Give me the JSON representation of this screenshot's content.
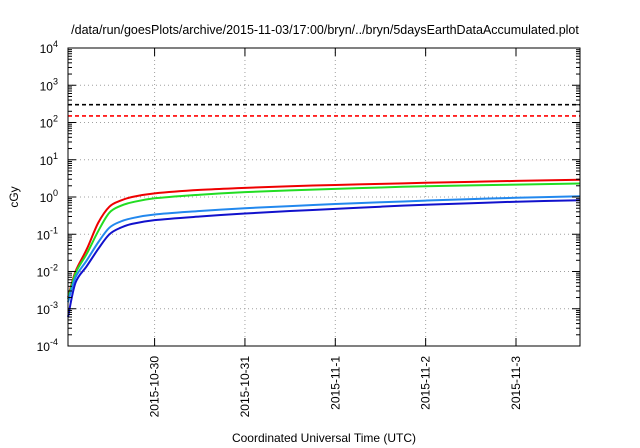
{
  "chart_data": {
    "type": "line",
    "title": "/data/run/goesPlots/archive/2015-11-03/17:00/bryn/../bryn/5daysEarthDataAccumulated.plot",
    "xlabel": "Coordinated Universal Time (UTC)",
    "ylabel": "cGy",
    "y_scale": "log",
    "ylim": [
      0.0001,
      10000
    ],
    "xlim": [
      "2015-10-29 01:00",
      "2015-11-03 17:00"
    ],
    "x_ticks": [
      "2015-10-30",
      "2015-10-31",
      "2015-11-1",
      "2015-11-2",
      "2015-11-3"
    ],
    "y_ticks": [
      {
        "base": "10",
        "exp": "-4",
        "value": 0.0001
      },
      {
        "base": "10",
        "exp": "-3",
        "value": 0.001
      },
      {
        "base": "10",
        "exp": "-2",
        "value": 0.01
      },
      {
        "base": "10",
        "exp": "-1",
        "value": 0.1
      },
      {
        "base": "10",
        "exp": "0",
        "value": 1
      },
      {
        "base": "10",
        "exp": "1",
        "value": 10
      },
      {
        "base": "10",
        "exp": "2",
        "value": 100
      },
      {
        "base": "10",
        "exp": "3",
        "value": 1000
      },
      {
        "base": "10",
        "exp": "4",
        "value": 10000
      }
    ],
    "grid": true,
    "thresholds": [
      {
        "value": 300,
        "color": "#000000",
        "style": "dashed"
      },
      {
        "value": 150,
        "color": "#ff0000",
        "style": "dashed"
      }
    ],
    "series": [
      {
        "color": "#ee0000",
        "x": [
          "2015-10-29 01:00",
          "2015-10-29 03:00",
          "2015-10-29 06:00",
          "2015-10-29 09:00",
          "2015-10-29 12:00",
          "2015-10-29 15:00",
          "2015-10-29 18:00",
          "2015-10-30 00:00",
          "2015-10-30 12:00",
          "2015-10-31 00:00",
          "2015-10-31 12:00",
          "2015-11-01 00:00",
          "2015-11-01 12:00",
          "2015-11-02 00:00",
          "2015-11-02 12:00",
          "2015-11-03 00:00",
          "2015-11-03 17:00"
        ],
        "values": [
          0.002,
          0.01,
          0.04,
          0.2,
          0.55,
          0.8,
          1.0,
          1.25,
          1.55,
          1.75,
          1.95,
          2.1,
          2.25,
          2.4,
          2.55,
          2.7,
          2.9
        ]
      },
      {
        "color": "#22dd22",
        "x": [
          "2015-10-29 01:00",
          "2015-10-29 03:00",
          "2015-10-29 06:00",
          "2015-10-29 09:00",
          "2015-10-29 12:00",
          "2015-10-29 15:00",
          "2015-10-29 18:00",
          "2015-10-30 00:00",
          "2015-10-30 12:00",
          "2015-10-31 00:00",
          "2015-10-31 12:00",
          "2015-11-01 00:00",
          "2015-11-01 12:00",
          "2015-11-02 00:00",
          "2015-11-02 12:00",
          "2015-11-03 00:00",
          "2015-11-03 17:00"
        ],
        "values": [
          0.0018,
          0.009,
          0.03,
          0.12,
          0.38,
          0.58,
          0.72,
          0.92,
          1.15,
          1.35,
          1.5,
          1.65,
          1.8,
          1.95,
          2.05,
          2.15,
          2.3
        ]
      },
      {
        "color": "#2288ee",
        "x": [
          "2015-10-29 01:00",
          "2015-10-29 03:00",
          "2015-10-29 06:00",
          "2015-10-29 09:00",
          "2015-10-29 12:00",
          "2015-10-29 15:00",
          "2015-10-29 18:00",
          "2015-10-30 00:00",
          "2015-10-30 12:00",
          "2015-10-31 00:00",
          "2015-10-31 12:00",
          "2015-11-01 00:00",
          "2015-11-01 12:00",
          "2015-11-02 00:00",
          "2015-11-02 12:00",
          "2015-11-03 00:00",
          "2015-11-03 17:00"
        ],
        "values": [
          0.0015,
          0.007,
          0.02,
          0.06,
          0.15,
          0.22,
          0.27,
          0.34,
          0.42,
          0.5,
          0.57,
          0.65,
          0.72,
          0.8,
          0.88,
          0.95,
          1.05
        ]
      },
      {
        "color": "#1111cc",
        "x": [
          "2015-10-29 01:00",
          "2015-10-29 03:00",
          "2015-10-29 06:00",
          "2015-10-29 09:00",
          "2015-10-29 12:00",
          "2015-10-29 15:00",
          "2015-10-29 18:00",
          "2015-10-30 00:00",
          "2015-10-30 12:00",
          "2015-10-31 00:00",
          "2015-10-31 12:00",
          "2015-11-01 00:00",
          "2015-11-01 12:00",
          "2015-11-02 00:00",
          "2015-11-02 12:00",
          "2015-11-03 00:00",
          "2015-11-03 17:00"
        ],
        "values": [
          0.0006,
          0.005,
          0.014,
          0.04,
          0.1,
          0.15,
          0.19,
          0.24,
          0.3,
          0.36,
          0.42,
          0.48,
          0.55,
          0.62,
          0.68,
          0.75,
          0.82
        ]
      }
    ]
  }
}
